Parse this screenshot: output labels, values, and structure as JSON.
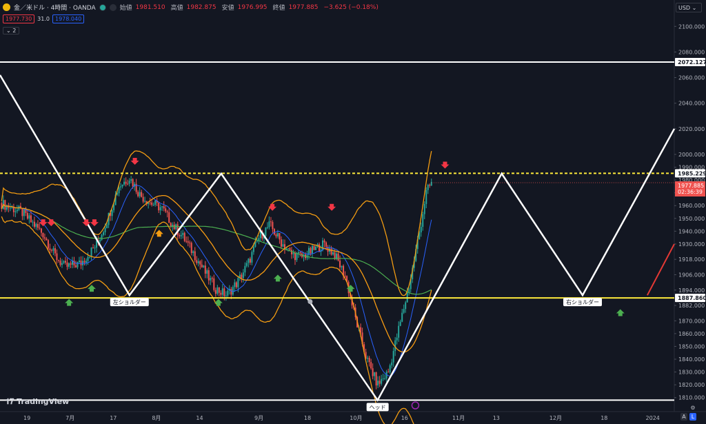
{
  "header": {
    "symbol": "金／米ドル · 4時間 · OANDA",
    "open_label": "始値",
    "open": "1981.510",
    "high_label": "高値",
    "high": "1982.875",
    "low_label": "安値",
    "low": "1976.995",
    "close_label": "終値",
    "close": "1977.885",
    "change": "−3.625 (−0.18%)"
  },
  "bid": "1977.730",
  "spread": "31.0",
  "ask": "1978.040",
  "indicator_toggle": "2",
  "currency": "USD",
  "logo": "TradingView",
  "scale_buttons": {
    "a": "A",
    "l": "L"
  },
  "colors": {
    "background": "#131722",
    "bollinger": "#f39c12",
    "ma_fast": "#2962ff",
    "ma_mid": "#e53935",
    "ma_slow": "#4caf50",
    "pattern": "#ffffff",
    "neckline": "#ffeb3b",
    "up_candle": "#26a69a",
    "down_candle": "#ef5350"
  },
  "chart_data": {
    "type": "candlestick",
    "y_ticks": [
      1810,
      1820,
      1830,
      1840,
      1850,
      1860,
      1870,
      1882,
      1894,
      1906,
      1918,
      1930,
      1940,
      1950,
      1960,
      1970,
      1980,
      1990,
      2000,
      2020,
      2040,
      2060,
      2080,
      2100
    ],
    "ylim": [
      1805,
      2112
    ],
    "x_labels": [
      {
        "t": 5,
        "label": "19"
      },
      {
        "t": 13,
        "label": "7月"
      },
      {
        "t": 21,
        "label": "17"
      },
      {
        "t": 29,
        "label": "8月"
      },
      {
        "t": 37,
        "label": "14"
      },
      {
        "t": 48,
        "label": "9月"
      },
      {
        "t": 57,
        "label": "18"
      },
      {
        "t": 66,
        "label": "10月"
      },
      {
        "t": 75,
        "label": "16"
      },
      {
        "t": 85,
        "label": "11月"
      },
      {
        "t": 92,
        "label": "13"
      },
      {
        "t": 103,
        "label": "12月"
      },
      {
        "t": 112,
        "label": "18"
      },
      {
        "t": 121,
        "label": "2024"
      }
    ],
    "xlim": [
      0,
      125
    ],
    "price_path": [
      [
        0,
        1962
      ],
      [
        4,
        1955
      ],
      [
        8,
        1938
      ],
      [
        10,
        1922
      ],
      [
        12,
        1912
      ],
      [
        15,
        1915
      ],
      [
        18,
        1930
      ],
      [
        20,
        1950
      ],
      [
        22,
        1975
      ],
      [
        24,
        1982
      ],
      [
        26,
        1968
      ],
      [
        28,
        1962
      ],
      [
        30,
        1958
      ],
      [
        32,
        1945
      ],
      [
        34,
        1935
      ],
      [
        36,
        1922
      ],
      [
        38,
        1908
      ],
      [
        40,
        1895
      ],
      [
        42,
        1890
      ],
      [
        44,
        1900
      ],
      [
        46,
        1915
      ],
      [
        48,
        1935
      ],
      [
        50,
        1945
      ],
      [
        52,
        1932
      ],
      [
        54,
        1922
      ],
      [
        56,
        1920
      ],
      [
        58,
        1925
      ],
      [
        60,
        1930
      ],
      [
        62,
        1922
      ],
      [
        64,
        1905
      ],
      [
        66,
        1870
      ],
      [
        68,
        1840
      ],
      [
        70,
        1820
      ],
      [
        72,
        1830
      ],
      [
        74,
        1865
      ],
      [
        76,
        1900
      ],
      [
        78,
        1945
      ],
      [
        79,
        1970
      ],
      [
        80,
        1978
      ]
    ],
    "horizontal_levels": [
      {
        "value": 2072.127,
        "label": "2072.127",
        "color": "#ffffff"
      },
      {
        "value": 1985.229,
        "label": "1985.229",
        "color": "#ffeb3b",
        "dashed": true
      },
      {
        "value": 1887.86,
        "label": "1887.860",
        "color": "#ffeb3b"
      },
      {
        "value": 1808,
        "label": "",
        "color": "#ffffff"
      }
    ],
    "current_price": {
      "value": 1977.885,
      "label": "1977.885",
      "countdown": "02:36:39"
    },
    "head_and_shoulders": {
      "points": [
        [
          0,
          2062
        ],
        [
          24,
          1890
        ],
        [
          41,
          1985
        ],
        [
          70,
          1808
        ],
        [
          93,
          1985
        ],
        [
          108,
          1890
        ],
        [
          125,
          2020
        ]
      ],
      "labels": [
        {
          "text": "左ショルダー",
          "t": 24,
          "value": 1890
        },
        {
          "text": "ヘッド",
          "t": 70,
          "value": 1808
        },
        {
          "text": "右ショルダー",
          "t": 108,
          "value": 1890
        }
      ]
    },
    "red_trend": [
      [
        120,
        1890
      ],
      [
        125,
        1930
      ]
    ],
    "signals": [
      {
        "t": 8,
        "value": 1945,
        "dir": "down"
      },
      {
        "t": 9.5,
        "value": 1945,
        "dir": "down"
      },
      {
        "t": 16,
        "value": 1945,
        "dir": "down"
      },
      {
        "t": 17.5,
        "value": 1945,
        "dir": "down"
      },
      {
        "t": 25,
        "value": 1993,
        "dir": "down"
      },
      {
        "t": 50.5,
        "value": 1957,
        "dir": "down"
      },
      {
        "t": 61.5,
        "value": 1957,
        "dir": "down"
      },
      {
        "t": 82.5,
        "value": 1990,
        "dir": "down"
      },
      {
        "t": 12.8,
        "value": 1886,
        "dir": "up"
      },
      {
        "t": 17,
        "value": 1897,
        "dir": "up"
      },
      {
        "t": 29.5,
        "value": 1940,
        "dir": "up",
        "color": "#f39c12"
      },
      {
        "t": 40.5,
        "value": 1886,
        "dir": "up"
      },
      {
        "t": 51.5,
        "value": 1905,
        "dir": "up"
      },
      {
        "t": 65,
        "value": 1897,
        "dir": "up"
      },
      {
        "t": 115,
        "value": 1878,
        "dir": "up"
      }
    ]
  }
}
